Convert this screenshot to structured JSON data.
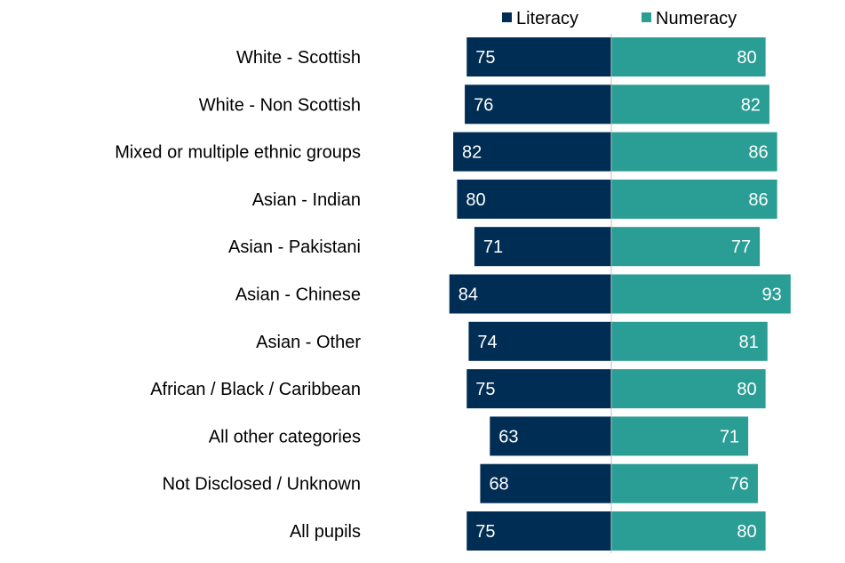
{
  "chart_data": {
    "type": "bar",
    "orientation": "horizontal-diverging",
    "categories": [
      "White - Scottish",
      "White - Non Scottish",
      "Mixed or multiple ethnic groups",
      "Asian - Indian",
      "Asian - Pakistani",
      "Asian - Chinese",
      "Asian - Other",
      "African / Black / Caribbean",
      "All other categories",
      "Not Disclosed / Unknown",
      "All pupils"
    ],
    "series": [
      {
        "name": "Literacy",
        "color": "#002d54",
        "values": [
          75,
          76,
          82,
          80,
          71,
          84,
          74,
          75,
          63,
          68,
          75
        ]
      },
      {
        "name": "Numeracy",
        "color": "#2a9d94",
        "values": [
          80,
          82,
          86,
          86,
          77,
          93,
          81,
          80,
          71,
          76,
          80
        ]
      }
    ],
    "title": "",
    "xlabel": "",
    "ylabel": "",
    "legend_position": "top",
    "grid": false
  }
}
